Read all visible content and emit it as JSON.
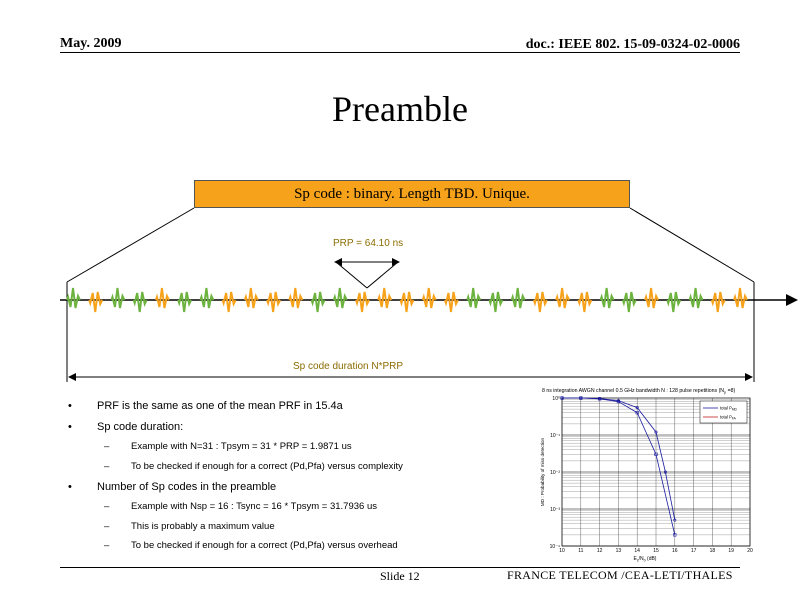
{
  "header": {
    "date": "May. 2009",
    "doc_id": "doc.: IEEE 802. 15-09-0324-02-0006"
  },
  "title": "Preamble",
  "banner": "Sp code : binary. Length TBD. Unique.",
  "diagram": {
    "prp_label": "PRP   = 64.10 ns",
    "duration_label": "Sp code duration  N*PRP",
    "pulse_colors": [
      "green",
      "orange",
      "green",
      "green",
      "orange",
      "green",
      "green",
      "orange",
      "orange",
      "orange",
      "orange",
      "green",
      "green",
      "orange",
      "orange",
      "orange",
      "orange",
      "orange",
      "green",
      "green",
      "green",
      "orange",
      "orange",
      "orange",
      "green",
      "green",
      "orange",
      "green",
      "green",
      "orange",
      "orange"
    ],
    "color_green": "#6db33f",
    "color_orange": "#f7a21b"
  },
  "bullets": [
    {
      "text": "PRF is the same as one of the mean PRF in 15.4a",
      "subs": []
    },
    {
      "text": "Sp code duration:",
      "subs": [
        "Example with N=31 : Tpsym = 31 * PRP = 1.9871 us",
        "To be checked if enough for a correct (Pd,Pfa) versus complexity"
      ]
    },
    {
      "text": "Number of Sp codes in the preamble",
      "subs": [
        "Example with Nsp = 16 :  Tsync = 16 * Tpsym = 31.7936 us",
        "This is probably a maximum value",
        "To be checked if enough for a correct (Pd,Pfa) versus overhead"
      ]
    }
  ],
  "chart_data": {
    "type": "line",
    "title": "8 ns integration    AWGN channel 0.5 GHz bandwidth  N : 128 pulse repetitions (N",
    "title_sub": "p",
    "title_end": " =8)",
    "xlabel": "E",
    "xlabel_sub": "s",
    "xlabel_mid": "/N",
    "xlabel_sub2": "0",
    "xlabel_end": " (dB)",
    "ylabel": "MD : Probability of miss detection",
    "x_ticks": [
      "10",
      "11",
      "12",
      "13",
      "14",
      "15",
      "16",
      "17",
      "18",
      "19",
      "20"
    ],
    "y_ticks": [
      "10⁰",
      "10⁻¹",
      "10⁻²",
      "10⁻³",
      "10⁻⁴"
    ],
    "xlim": [
      10,
      20
    ],
    "ylim_log10": [
      -4,
      0
    ],
    "series": [
      {
        "name": "total P",
        "name_sub": "MD",
        "color": "#1a1aa0",
        "x": [
          10,
          11,
          12,
          13,
          14,
          15,
          16
        ],
        "y": [
          1,
          1,
          0.95,
          0.8,
          0.4,
          0.03,
          0.0002
        ]
      },
      {
        "name": "total P",
        "name_sub": "FA",
        "color": "#1a1aa0",
        "x": [
          10,
          11,
          12,
          13,
          14,
          15,
          15.5,
          16
        ],
        "y": [
          1,
          1,
          0.97,
          0.85,
          0.55,
          0.12,
          0.01,
          0.0005
        ]
      }
    ],
    "legend_position": "top-right",
    "grid": true
  },
  "footer": {
    "slide": "Slide 12",
    "org": "FRANCE TELECOM /CEA-LETI/THALES"
  }
}
